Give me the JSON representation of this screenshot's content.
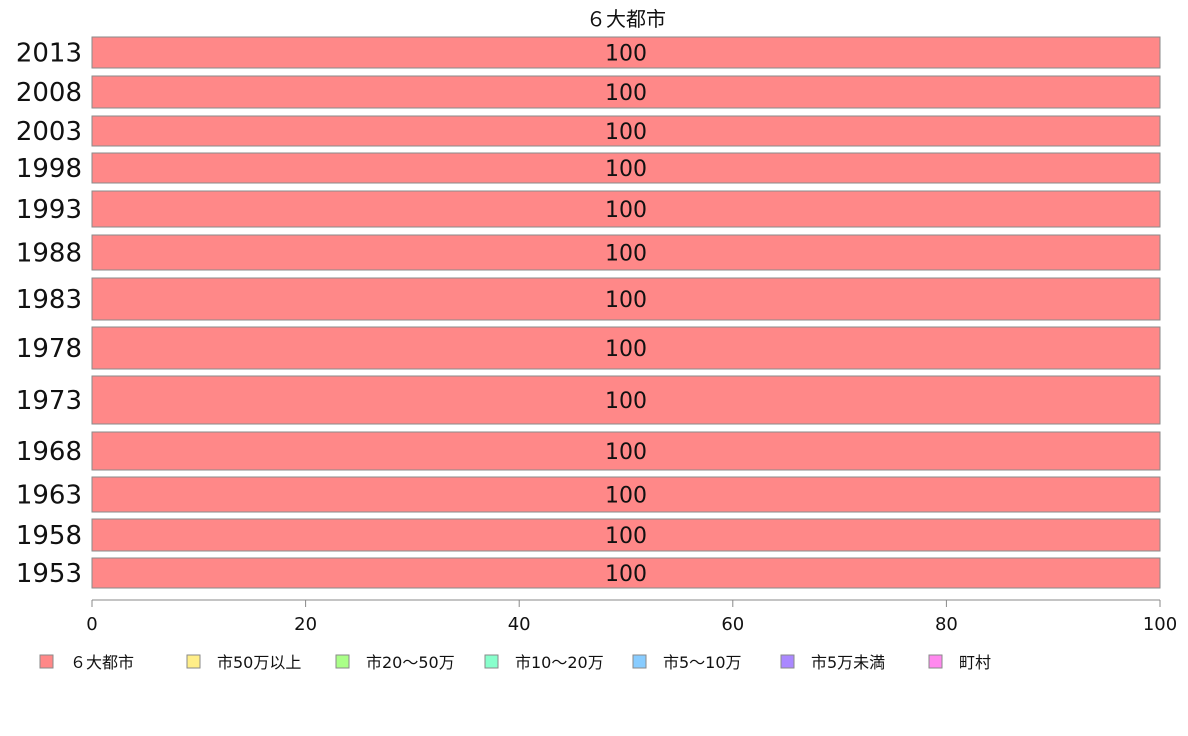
{
  "chart_data": {
    "type": "bar",
    "orientation": "horizontal",
    "stacked": true,
    "title": "６大都市",
    "categories": [
      "2013",
      "2008",
      "2003",
      "1998",
      "1993",
      "1988",
      "1983",
      "1978",
      "1973",
      "1968",
      "1963",
      "1958",
      "1953"
    ],
    "series": [
      {
        "name": "６大都市",
        "color": "#ff8888",
        "values": [
          100,
          100,
          100,
          100,
          100,
          100,
          100,
          100,
          100,
          100,
          100,
          100,
          100
        ]
      },
      {
        "name": "市50万以上",
        "color": "#ffee88",
        "values": [
          0,
          0,
          0,
          0,
          0,
          0,
          0,
          0,
          0,
          0,
          0,
          0,
          0
        ]
      },
      {
        "name": "市20〜50万",
        "color": "#aaff88",
        "values": [
          0,
          0,
          0,
          0,
          0,
          0,
          0,
          0,
          0,
          0,
          0,
          0,
          0
        ]
      },
      {
        "name": "市10〜20万",
        "color": "#88ffcc",
        "values": [
          0,
          0,
          0,
          0,
          0,
          0,
          0,
          0,
          0,
          0,
          0,
          0,
          0
        ]
      },
      {
        "name": "市5〜10万",
        "color": "#88ccff",
        "values": [
          0,
          0,
          0,
          0,
          0,
          0,
          0,
          0,
          0,
          0,
          0,
          0,
          0
        ]
      },
      {
        "name": "市5万未満",
        "color": "#aa88ff",
        "values": [
          0,
          0,
          0,
          0,
          0,
          0,
          0,
          0,
          0,
          0,
          0,
          0,
          0
        ]
      },
      {
        "name": "町村",
        "color": "#ff88ee",
        "values": [
          0,
          0,
          0,
          0,
          0,
          0,
          0,
          0,
          0,
          0,
          0,
          0,
          0
        ]
      }
    ],
    "data_labels": [
      "100",
      "100",
      "100",
      "100",
      "100",
      "100",
      "100",
      "100",
      "100",
      "100",
      "100",
      "100",
      "100"
    ],
    "x_ticks": [
      "0",
      "20",
      "40",
      "60",
      "80",
      "100"
    ],
    "xlim": [
      0,
      100
    ],
    "legend_position": "bottom",
    "grid": false
  }
}
